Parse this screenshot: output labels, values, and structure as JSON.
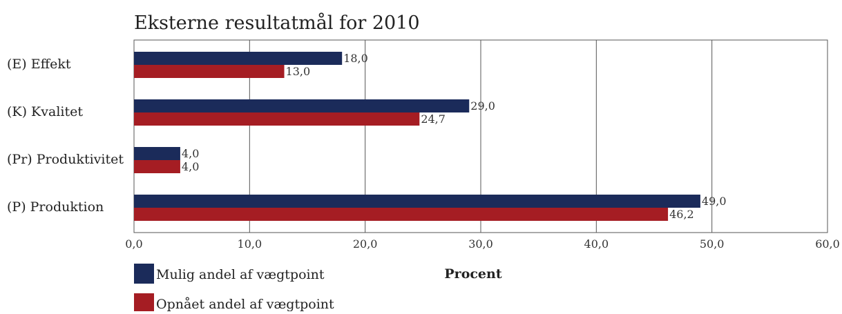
{
  "chart_data": {
    "type": "bar",
    "orientation": "horizontal",
    "title": "Eksterne resultatmål for 2010",
    "xlabel": "Procent",
    "ylabel": "",
    "categories": [
      "(E) Effekt",
      "(K) Kvalitet",
      "(Pr) Produktivitet",
      "(P) Produktion"
    ],
    "series": [
      {
        "name": "Mulig andel af vægtpoint",
        "color": "#1b2b5a",
        "values": [
          18.0,
          29.0,
          4.0,
          49.0
        ],
        "labels": [
          "18,0",
          "29,0",
          "4,0",
          "49,0"
        ]
      },
      {
        "name": "Opnået andel af vægtpoint",
        "color": "#a51d23",
        "values": [
          13.0,
          24.7,
          4.0,
          46.2
        ],
        "labels": [
          "13,0",
          "24,7",
          "4,0",
          "46,2"
        ]
      }
    ],
    "xlim": [
      0,
      60
    ],
    "xticks": [
      0,
      10,
      20,
      30,
      40,
      50,
      60
    ],
    "xtick_labels": [
      "0,0",
      "10,0",
      "20,0",
      "30,0",
      "40,0",
      "50,0",
      "60,0"
    ],
    "grid": true,
    "legend": "bottom-left",
    "note": ""
  }
}
